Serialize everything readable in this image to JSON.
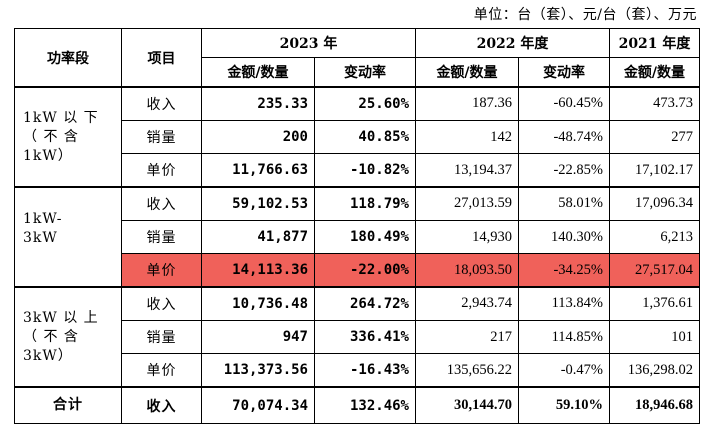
{
  "unit_note": "单位：台（套）、元/台（套）、万元",
  "header": {
    "col_segment": "功率段",
    "col_item": "项目",
    "year_2023": "2023 年",
    "year_2022": "2022 年度",
    "year_2021": "2021 年度",
    "sub_amount": "金额/数量",
    "sub_change": "变动率"
  },
  "segments": [
    {
      "name": "1kW 以下（不含 1kW）",
      "name_lines": [
        "1kW  以 下",
        "（  不  含",
        "1kW）"
      ],
      "rows": [
        {
          "item": "收入",
          "v2023": "235.33",
          "c2023": "25.60%",
          "v2022": "187.36",
          "c2022": "-60.45%",
          "v2021": "473.73"
        },
        {
          "item": "销量",
          "v2023": "200",
          "c2023": "40.85%",
          "v2022": "142",
          "c2022": "-48.74%",
          "v2021": "277"
        },
        {
          "item": "单价",
          "v2023": "11,766.63",
          "c2023": "-10.82%",
          "v2022": "13,194.37",
          "c2022": "-22.85%",
          "v2021": "17,102.17"
        }
      ]
    },
    {
      "name": "1kW-3kW",
      "name_lines": [
        "1kW-",
        "3kW"
      ],
      "rows": [
        {
          "item": "收入",
          "v2023": "59,102.53",
          "c2023": "118.79%",
          "v2022": "27,013.59",
          "c2022": "58.01%",
          "v2021": "17,096.34"
        },
        {
          "item": "销量",
          "v2023": "41,877",
          "c2023": "180.49%",
          "v2022": "14,930",
          "c2022": "140.30%",
          "v2021": "6,213"
        },
        {
          "item": "单价",
          "v2023": "14,113.36",
          "c2023": "-22.00%",
          "v2022": "18,093.50",
          "c2022": "-34.25%",
          "v2021": "27,517.04"
        }
      ]
    },
    {
      "name": "3kW 以上（不含 3kW）",
      "name_lines": [
        "3kW  以 上",
        "（  不  含",
        "3kW）"
      ],
      "rows": [
        {
          "item": "收入",
          "v2023": "10,736.48",
          "c2023": "264.72%",
          "v2022": "2,943.74",
          "c2022": "113.84%",
          "v2021": "1,376.61"
        },
        {
          "item": "销量",
          "v2023": "947",
          "c2023": "336.41%",
          "v2022": "217",
          "c2022": "114.85%",
          "v2021": "101"
        },
        {
          "item": "单价",
          "v2023": "113,373.56",
          "c2023": "-16.43%",
          "v2022": "135,656.22",
          "c2022": "-0.47%",
          "v2021": "136,298.02"
        }
      ]
    }
  ],
  "total": {
    "segment": "合计",
    "item": "收入",
    "v2023": "70,074.34",
    "c2023": "132.46%",
    "v2022": "30,144.70",
    "c2022": "59.10%",
    "v2021": "18,946.68"
  },
  "highlight_color": "#f0615a"
}
